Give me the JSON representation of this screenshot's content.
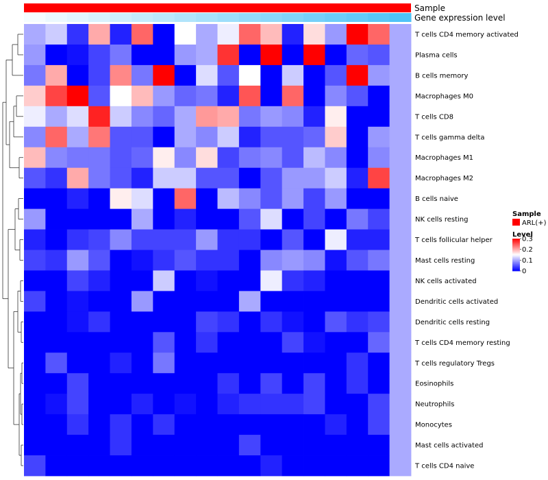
{
  "chart_data": {
    "type": "heatmap",
    "title": "",
    "annotation_tracks": [
      {
        "name": "Sample",
        "color": "#ff0000"
      },
      {
        "name": "Gene expression level",
        "color_low": "#ffffff",
        "color_high": "#4fc3f7"
      }
    ],
    "rows": [
      "T cells CD4 memory activated",
      "Plasma cells",
      "B cells memory",
      "Macrophages M0",
      "T cells CD8",
      "T cells gamma delta",
      "Macrophages M1",
      "Macrophages M2",
      "B cells naive",
      "NK cells resting",
      "T cells follicular helper",
      "Mast cells resting",
      "NK cells activated",
      "Dendritic cells activated",
      "Dendritic cells resting",
      "T cells CD4 memory resting",
      "T cells regulatory  Tregs",
      "Eosinophils",
      "Neutrophils",
      "Monocytes",
      "Mast cells activated",
      "T cells CD4 naive"
    ],
    "n_columns": 18,
    "values": [
      [
        0.1,
        0.12,
        0.03,
        0.2,
        0.02,
        0.24,
        0.0,
        0.15,
        0.1,
        0.14,
        0.24,
        0.19,
        0.02,
        0.17,
        0.09,
        0.3,
        0.24,
        0.1
      ],
      [
        0.09,
        0.0,
        0.01,
        0.04,
        0.07,
        0.0,
        0.0,
        0.09,
        0.1,
        0.27,
        0.0,
        0.3,
        0.0,
        0.3,
        0.0,
        0.06,
        0.05,
        0.1
      ],
      [
        0.07,
        0.2,
        0.0,
        0.04,
        0.22,
        0.07,
        0.3,
        0.0,
        0.13,
        0.05,
        0.15,
        0.0,
        0.12,
        0.0,
        0.05,
        0.3,
        0.09,
        0.1
      ],
      [
        0.18,
        0.26,
        0.3,
        0.05,
        0.15,
        0.19,
        0.09,
        0.06,
        0.07,
        0.02,
        0.25,
        0.0,
        0.24,
        0.0,
        0.08,
        0.05,
        0.0,
        0.1
      ],
      [
        0.14,
        0.1,
        0.13,
        0.28,
        0.12,
        0.08,
        0.06,
        0.1,
        0.21,
        0.2,
        0.07,
        0.09,
        0.08,
        0.02,
        0.16,
        0.0,
        0.0,
        0.1
      ],
      [
        0.08,
        0.24,
        0.1,
        0.23,
        0.05,
        0.05,
        0.0,
        0.1,
        0.08,
        0.12,
        0.02,
        0.05,
        0.05,
        0.06,
        0.18,
        0.0,
        0.09,
        0.1
      ],
      [
        0.19,
        0.08,
        0.07,
        0.07,
        0.05,
        0.06,
        0.16,
        0.08,
        0.17,
        0.04,
        0.07,
        0.08,
        0.05,
        0.11,
        0.08,
        0.0,
        0.08,
        0.1
      ],
      [
        0.05,
        0.03,
        0.2,
        0.07,
        0.05,
        0.02,
        0.12,
        0.12,
        0.05,
        0.05,
        0.0,
        0.05,
        0.09,
        0.09,
        0.12,
        0.02,
        0.26,
        0.1
      ],
      [
        0.0,
        0.0,
        0.02,
        0.0,
        0.16,
        0.13,
        0.0,
        0.24,
        0.0,
        0.11,
        0.08,
        0.05,
        0.09,
        0.04,
        0.09,
        0.0,
        0.0,
        0.1
      ],
      [
        0.09,
        0.0,
        0.0,
        0.0,
        0.0,
        0.1,
        0.0,
        0.02,
        0.0,
        0.0,
        0.05,
        0.13,
        0.0,
        0.04,
        0.0,
        0.07,
        0.04,
        0.1
      ],
      [
        0.02,
        0.0,
        0.03,
        0.04,
        0.08,
        0.04,
        0.04,
        0.04,
        0.09,
        0.03,
        0.03,
        0.0,
        0.05,
        0.0,
        0.14,
        0.02,
        0.02,
        0.1
      ],
      [
        0.04,
        0.03,
        0.09,
        0.05,
        0.0,
        0.01,
        0.03,
        0.05,
        0.03,
        0.03,
        0.0,
        0.08,
        0.09,
        0.08,
        0.01,
        0.05,
        0.07,
        0.1
      ],
      [
        0.0,
        0.0,
        0.04,
        0.02,
        0.0,
        0.0,
        0.12,
        0.0,
        0.01,
        0.0,
        0.0,
        0.14,
        0.03,
        0.02,
        0.0,
        0.0,
        0.0,
        0.1
      ],
      [
        0.04,
        0.0,
        0.01,
        0.0,
        0.0,
        0.09,
        0.0,
        0.0,
        0.0,
        0.0,
        0.1,
        0.0,
        0.0,
        0.0,
        0.0,
        0.0,
        0.0,
        0.1
      ],
      [
        0.0,
        0.0,
        0.01,
        0.03,
        0.0,
        0.0,
        0.0,
        0.0,
        0.04,
        0.03,
        0.0,
        0.03,
        0.01,
        0.0,
        0.05,
        0.03,
        0.04,
        0.1
      ],
      [
        0.0,
        0.0,
        0.0,
        0.0,
        0.0,
        0.0,
        0.05,
        0.0,
        0.03,
        0.0,
        0.0,
        0.0,
        0.04,
        0.01,
        0.0,
        0.0,
        0.06,
        0.1
      ],
      [
        0.0,
        0.05,
        0.0,
        0.0,
        0.02,
        0.0,
        0.07,
        0.0,
        0.0,
        0.0,
        0.0,
        0.0,
        0.0,
        0.0,
        0.0,
        0.03,
        0.0,
        0.1
      ],
      [
        0.0,
        0.0,
        0.04,
        0.0,
        0.0,
        0.0,
        0.0,
        0.0,
        0.0,
        0.03,
        0.0,
        0.04,
        0.0,
        0.04,
        0.0,
        0.03,
        0.0,
        0.1
      ],
      [
        0.0,
        0.01,
        0.04,
        0.0,
        0.0,
        0.02,
        0.0,
        0.01,
        0.0,
        0.02,
        0.03,
        0.03,
        0.03,
        0.04,
        0.0,
        0.0,
        0.04,
        0.1
      ],
      [
        0.0,
        0.0,
        0.03,
        0.0,
        0.03,
        0.0,
        0.03,
        0.0,
        0.0,
        0.0,
        0.0,
        0.0,
        0.0,
        0.0,
        0.02,
        0.0,
        0.04,
        0.1
      ],
      [
        0.0,
        0.0,
        0.0,
        0.0,
        0.03,
        0.0,
        0.0,
        0.0,
        0.0,
        0.0,
        0.04,
        0.0,
        0.0,
        0.0,
        0.0,
        0.0,
        0.0,
        0.1
      ],
      [
        0.04,
        0.0,
        0.0,
        0.0,
        0.0,
        0.0,
        0.0,
        0.0,
        0.0,
        0.0,
        0.0,
        0.02,
        0.0,
        0.0,
        0.0,
        0.0,
        0.0,
        0.1
      ]
    ],
    "color_scale": {
      "min": 0,
      "mid": 0.15,
      "max": 0.3,
      "low_color": "#0000ff",
      "mid_color": "#ffffff",
      "high_color": "#ff0000"
    },
    "legend": {
      "sample_title": "Sample",
      "sample_entry": "ARL(+)",
      "sample_color": "#ff0000",
      "level_title": "Level",
      "level_ticks": [
        {
          "value": 0.3,
          "label": "0.3"
        },
        {
          "value": 0.2,
          "label": "0.2"
        },
        {
          "value": 0.1,
          "label": "0.1"
        },
        {
          "value": 0,
          "label": "0"
        }
      ]
    }
  }
}
